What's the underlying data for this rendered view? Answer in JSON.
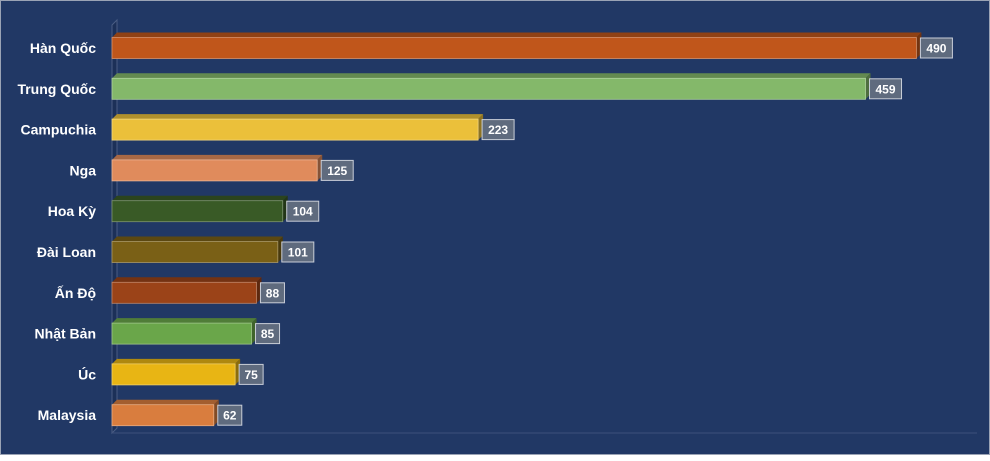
{
  "chart_data": {
    "type": "bar",
    "orientation": "horizontal",
    "style": "3d",
    "title": "",
    "xlabel": "",
    "ylabel": "",
    "grid": false,
    "legend": "none",
    "xlim": [
      0,
      500
    ],
    "categories": [
      "Hàn Quốc",
      "Trung Quốc",
      "Campuchia",
      "Nga",
      "Hoa Kỳ",
      "Đài Loan",
      "Ấn Độ",
      "Nhật Bản",
      "Úc",
      "Malaysia"
    ],
    "values": [
      490,
      459,
      223,
      125,
      104,
      101,
      88,
      85,
      75,
      62
    ],
    "bar_colors": [
      "#c0561b",
      "#84b86a",
      "#ebc03a",
      "#e08b5c",
      "#395a26",
      "#7a6016",
      "#9b4318",
      "#6aa64a",
      "#e8b514",
      "#d97d3e"
    ],
    "background_color": "#213865",
    "label_color": "#ffffff"
  }
}
